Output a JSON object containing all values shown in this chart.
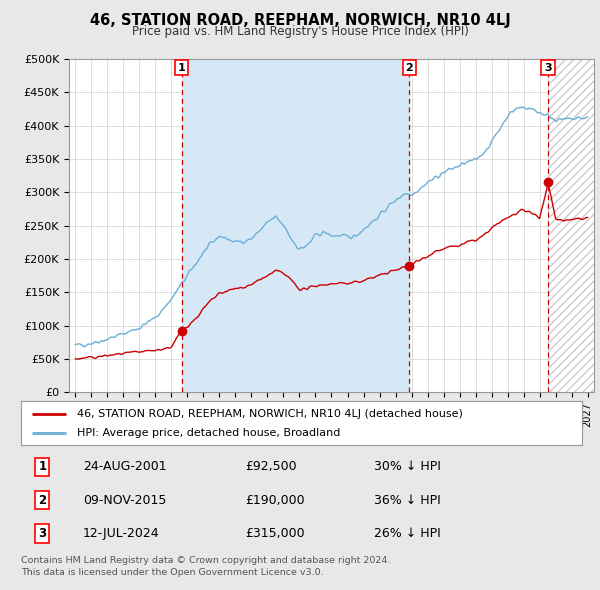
{
  "title": "46, STATION ROAD, REEPHAM, NORWICH, NR10 4LJ",
  "subtitle": "Price paid vs. HM Land Registry's House Price Index (HPI)",
  "ylabel_ticks": [
    "£0",
    "£50K",
    "£100K",
    "£150K",
    "£200K",
    "£250K",
    "£300K",
    "£350K",
    "£400K",
    "£450K",
    "£500K"
  ],
  "ytick_values": [
    0,
    50000,
    100000,
    150000,
    200000,
    250000,
    300000,
    350000,
    400000,
    450000,
    500000
  ],
  "ylim": [
    0,
    500000
  ],
  "xlim_start": 1994.6,
  "xlim_end": 2027.4,
  "bg_color": "#e8e8e8",
  "plot_bg_color": "#ffffff",
  "hpi_color": "#6baed6",
  "hpi_fill_color": "#d6e8f5",
  "sale_color": "#cc0000",
  "vline_color": "#cc0000",
  "ownership_shade": "#d6e8f5",
  "transactions": [
    {
      "date_year": 2001.646,
      "price": 92500,
      "label": "1"
    },
    {
      "date_year": 2015.858,
      "price": 190000,
      "label": "2"
    },
    {
      "date_year": 2024.528,
      "price": 315000,
      "label": "3"
    }
  ],
  "transaction_table": [
    {
      "num": "1",
      "date": "24-AUG-2001",
      "price": "£92,500",
      "pct": "30% ↓ HPI"
    },
    {
      "num": "2",
      "date": "09-NOV-2015",
      "price": "£190,000",
      "pct": "36% ↓ HPI"
    },
    {
      "num": "3",
      "date": "12-JUL-2024",
      "price": "£315,000",
      "pct": "26% ↓ HPI"
    }
  ],
  "legend_line1": "46, STATION ROAD, REEPHAM, NORWICH, NR10 4LJ (detached house)",
  "legend_line2": "HPI: Average price, detached house, Broadland",
  "footer": "Contains HM Land Registry data © Crown copyright and database right 2024.\nThis data is licensed under the Open Government Licence v3.0.",
  "hpi_trend_points": [
    [
      1995.0,
      70000
    ],
    [
      1996.0,
      74000
    ],
    [
      1997.0,
      80000
    ],
    [
      1998.0,
      88000
    ],
    [
      1999.0,
      97000
    ],
    [
      2000.0,
      112000
    ],
    [
      2001.0,
      140000
    ],
    [
      2002.0,
      175000
    ],
    [
      2003.0,
      210000
    ],
    [
      2004.0,
      235000
    ],
    [
      2005.0,
      225000
    ],
    [
      2006.0,
      230000
    ],
    [
      2007.0,
      255000
    ],
    [
      2007.5,
      262000
    ],
    [
      2008.0,
      250000
    ],
    [
      2008.5,
      230000
    ],
    [
      2009.0,
      215000
    ],
    [
      2009.5,
      220000
    ],
    [
      2010.0,
      235000
    ],
    [
      2010.5,
      240000
    ],
    [
      2011.0,
      235000
    ],
    [
      2011.5,
      235000
    ],
    [
      2012.0,
      232000
    ],
    [
      2012.5,
      235000
    ],
    [
      2013.0,
      245000
    ],
    [
      2013.5,
      255000
    ],
    [
      2014.0,
      265000
    ],
    [
      2014.5,
      278000
    ],
    [
      2015.0,
      288000
    ],
    [
      2015.5,
      298000
    ],
    [
      2016.0,
      298000
    ],
    [
      2016.5,
      305000
    ],
    [
      2017.0,
      315000
    ],
    [
      2017.5,
      322000
    ],
    [
      2018.0,
      330000
    ],
    [
      2018.5,
      335000
    ],
    [
      2019.0,
      340000
    ],
    [
      2019.5,
      345000
    ],
    [
      2020.0,
      348000
    ],
    [
      2020.5,
      360000
    ],
    [
      2021.0,
      375000
    ],
    [
      2021.5,
      395000
    ],
    [
      2022.0,
      415000
    ],
    [
      2022.5,
      425000
    ],
    [
      2023.0,
      428000
    ],
    [
      2023.5,
      425000
    ],
    [
      2024.0,
      420000
    ],
    [
      2024.5,
      415000
    ],
    [
      2025.0,
      410000
    ],
    [
      2025.5,
      408000
    ],
    [
      2026.0,
      410000
    ],
    [
      2027.0,
      412000
    ]
  ],
  "sale_trend_points": [
    [
      1995.0,
      50000
    ],
    [
      1996.0,
      52000
    ],
    [
      1997.0,
      55000
    ],
    [
      1998.0,
      58000
    ],
    [
      1999.0,
      60000
    ],
    [
      2000.0,
      63000
    ],
    [
      2001.0,
      68000
    ],
    [
      2001.646,
      92500
    ],
    [
      2002.0,
      100000
    ],
    [
      2002.5,
      110000
    ],
    [
      2003.0,
      125000
    ],
    [
      2003.5,
      138000
    ],
    [
      2004.0,
      148000
    ],
    [
      2004.5,
      152000
    ],
    [
      2005.0,
      155000
    ],
    [
      2005.5,
      158000
    ],
    [
      2006.0,
      162000
    ],
    [
      2006.5,
      168000
    ],
    [
      2007.0,
      175000
    ],
    [
      2007.5,
      182000
    ],
    [
      2008.0,
      178000
    ],
    [
      2008.5,
      168000
    ],
    [
      2009.0,
      155000
    ],
    [
      2009.5,
      155000
    ],
    [
      2010.0,
      160000
    ],
    [
      2010.5,
      162000
    ],
    [
      2011.0,
      162000
    ],
    [
      2011.5,
      165000
    ],
    [
      2012.0,
      162000
    ],
    [
      2012.5,
      165000
    ],
    [
      2013.0,
      168000
    ],
    [
      2013.5,
      172000
    ],
    [
      2014.0,
      175000
    ],
    [
      2014.5,
      180000
    ],
    [
      2015.0,
      183000
    ],
    [
      2015.858,
      190000
    ],
    [
      2016.0,
      192000
    ],
    [
      2016.5,
      198000
    ],
    [
      2017.0,
      205000
    ],
    [
      2017.5,
      212000
    ],
    [
      2018.0,
      215000
    ],
    [
      2018.5,
      218000
    ],
    [
      2019.0,
      220000
    ],
    [
      2019.5,
      225000
    ],
    [
      2020.0,
      228000
    ],
    [
      2020.5,
      235000
    ],
    [
      2021.0,
      245000
    ],
    [
      2021.5,
      255000
    ],
    [
      2022.0,
      262000
    ],
    [
      2022.5,
      268000
    ],
    [
      2023.0,
      272000
    ],
    [
      2023.5,
      270000
    ],
    [
      2024.0,
      260000
    ],
    [
      2024.528,
      315000
    ],
    [
      2025.0,
      260000
    ],
    [
      2025.5,
      258000
    ],
    [
      2026.0,
      260000
    ],
    [
      2027.0,
      262000
    ]
  ]
}
